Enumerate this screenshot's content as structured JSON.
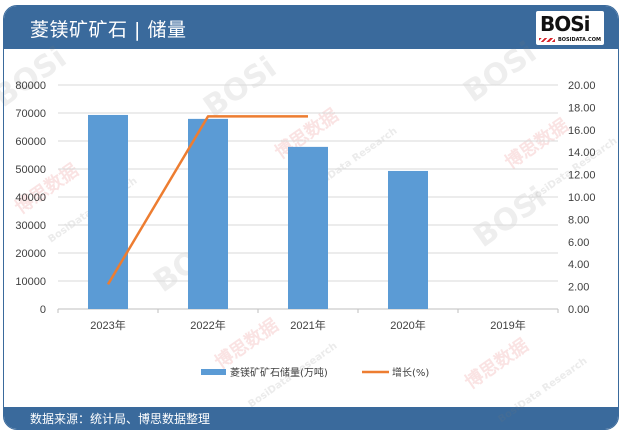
{
  "header": {
    "title": "菱镁矿矿石 | 储量",
    "logo_text": "BOSi",
    "logo_sub": "BOSIDATA.COM"
  },
  "footer": {
    "source": "数据来源：统计局、博思数据整理"
  },
  "watermark": {
    "text_cn": "博思数据",
    "text_en": "BosiData Research"
  },
  "colors": {
    "frame": "#3a6a9c",
    "bar": "#5b9bd5",
    "line": "#ed7d31",
    "grid": "#d9d9d9"
  },
  "chart_data": {
    "type": "bar+line",
    "title": "菱镁矿矿石 | 储量",
    "categories": [
      "2023年",
      "2022年",
      "2021年",
      "2020年",
      "2019年"
    ],
    "series": [
      {
        "name": "菱镁矿矿石储量(万吨)",
        "type": "bar",
        "axis": "left",
        "values": [
          69300,
          67900,
          57900,
          49300,
          null
        ]
      },
      {
        "name": "增长(%)",
        "type": "line",
        "axis": "right",
        "values": [
          2.2,
          17.2,
          17.2,
          null,
          null
        ]
      }
    ],
    "left_axis": {
      "ylim": [
        0,
        80000
      ],
      "ticks": [
        "0",
        "10000",
        "20000",
        "30000",
        "40000",
        "50000",
        "60000",
        "70000",
        "80000"
      ]
    },
    "right_axis": {
      "ylim": [
        0,
        20
      ],
      "ticks": [
        "0.00",
        "2.00",
        "4.00",
        "6.00",
        "8.00",
        "10.00",
        "12.00",
        "14.00",
        "16.00",
        "18.00",
        "20.00"
      ]
    },
    "xlabel": "",
    "ylabel": "",
    "grid": true,
    "legend_position": "bottom"
  }
}
